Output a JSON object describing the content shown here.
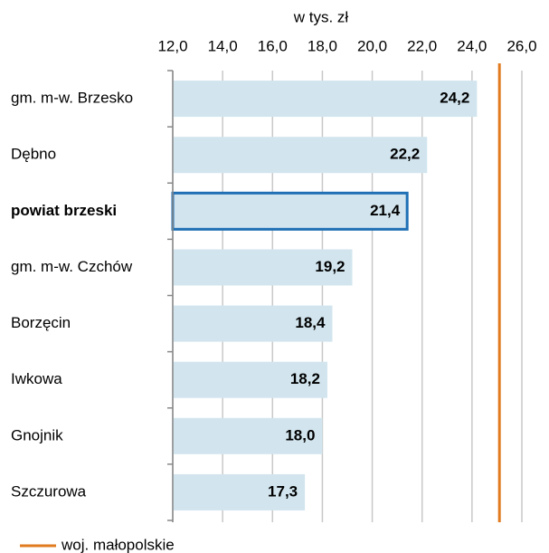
{
  "chart_data": {
    "type": "barh",
    "axis_title": "w tys. zł",
    "categories": [
      "gm. m-w. Brzesko",
      "Dębno",
      "powiat brzeski",
      "gm. m-w. Czchów",
      "Borzęcin",
      "Iwkowa",
      "Gnojnik",
      "Szczurowa"
    ],
    "values": [
      24.2,
      22.2,
      21.4,
      19.2,
      18.4,
      18.2,
      18.0,
      17.3
    ],
    "value_labels": [
      "24,2",
      "22,2",
      "21,4",
      "19,2",
      "18,4",
      "18,2",
      "18,0",
      "17,3"
    ],
    "color": "#d2e5ee",
    "highlight": 2,
    "highlight_color": "#1f6fb5",
    "xlim": [
      12,
      26
    ],
    "xticks": [
      {
        "value": 12,
        "label": "12,0"
      },
      {
        "value": 14,
        "label": "14,0"
      },
      {
        "value": 16,
        "label": "16,0"
      },
      {
        "value": 18,
        "label": "18,0"
      },
      {
        "value": 20,
        "label": "20,0"
      },
      {
        "value": 22,
        "label": "22,0"
      },
      {
        "value": 24,
        "label": "24,0"
      },
      {
        "value": 26,
        "label": "26,0"
      }
    ],
    "grid": true,
    "reference": {
      "name": "woj. małopolskie",
      "value": 25.1,
      "color": "#e07b20"
    }
  }
}
